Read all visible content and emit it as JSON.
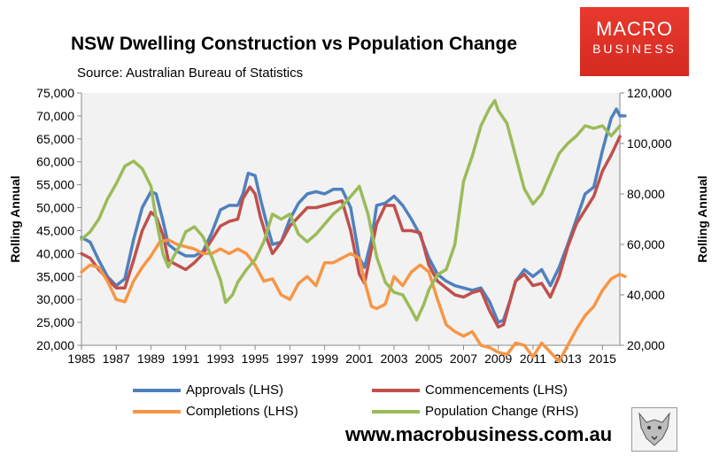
{
  "header": {
    "title": "NSW Dwelling Construction vs Population Change",
    "subtitle": "Source: Australian Bureau of Statistics"
  },
  "logo": {
    "line1": "MACRO",
    "line2": "BUSINESS"
  },
  "footer": {
    "website": "www.macrobusiness.com.au"
  },
  "colors": {
    "approvals": "#4f81bd",
    "commencements": "#c0504d",
    "completions": "#f79646",
    "population": "#9bbb59",
    "plot_bg": "#f2f2f2"
  },
  "chart_data": {
    "type": "line",
    "title": "NSW Dwelling Construction vs Population Change",
    "xlim": [
      1985,
      2016
    ],
    "x_ticks": [
      "1985",
      "1987",
      "1989",
      "1991",
      "1993",
      "1995",
      "1997",
      "1999",
      "2001",
      "2003",
      "2005",
      "2007",
      "2009",
      "2011",
      "2013",
      "2015"
    ],
    "y_left": {
      "label": "Rolling Annual",
      "lim": [
        20000,
        75000
      ],
      "ticks": [
        "20,000",
        "25,000",
        "30,000",
        "35,000",
        "40,000",
        "45,000",
        "50,000",
        "55,000",
        "60,000",
        "65,000",
        "70,000",
        "75,000"
      ]
    },
    "y_right": {
      "label": "Rolling Annual",
      "lim": [
        20000,
        120000
      ],
      "ticks": [
        "20,000",
        "40,000",
        "60,000",
        "80,000",
        "100,000",
        "120,000"
      ]
    },
    "series": [
      {
        "name": "Approvals (LHS)",
        "axis": "left",
        "color": "#4f81bd",
        "points": [
          [
            1985,
            43500
          ],
          [
            1985.5,
            42500
          ],
          [
            1986,
            38500
          ],
          [
            1986.5,
            35000
          ],
          [
            1987,
            33000
          ],
          [
            1987.5,
            34500
          ],
          [
            1988,
            43000
          ],
          [
            1988.5,
            50000
          ],
          [
            1989,
            53500
          ],
          [
            1989.3,
            53000
          ],
          [
            1989.7,
            47000
          ],
          [
            1990,
            42000
          ],
          [
            1990.5,
            40500
          ],
          [
            1991,
            39500
          ],
          [
            1991.5,
            39500
          ],
          [
            1992,
            40500
          ],
          [
            1992.5,
            44500
          ],
          [
            1993,
            49500
          ],
          [
            1993.5,
            50500
          ],
          [
            1994,
            50500
          ],
          [
            1994.3,
            53000
          ],
          [
            1994.6,
            57500
          ],
          [
            1995,
            57000
          ],
          [
            1995.3,
            52000
          ],
          [
            1995.7,
            46000
          ],
          [
            1996,
            42000
          ],
          [
            1996.5,
            42500
          ],
          [
            1997,
            47500
          ],
          [
            1997.5,
            51000
          ],
          [
            1998,
            53000
          ],
          [
            1998.5,
            53500
          ],
          [
            1999,
            53000
          ],
          [
            1999.5,
            54000
          ],
          [
            2000,
            54000
          ],
          [
            2000.5,
            50000
          ],
          [
            2001,
            39000
          ],
          [
            2001.3,
            37000
          ],
          [
            2001.7,
            43000
          ],
          [
            2002,
            50500
          ],
          [
            2002.5,
            51000
          ],
          [
            2003,
            52500
          ],
          [
            2003.5,
            50500
          ],
          [
            2004,
            47500
          ],
          [
            2004.5,
            44000
          ],
          [
            2005,
            39000
          ],
          [
            2005.5,
            35500
          ],
          [
            2006,
            34000
          ],
          [
            2006.5,
            33000
          ],
          [
            2007,
            32500
          ],
          [
            2007.5,
            32000
          ],
          [
            2008,
            32500
          ],
          [
            2008.5,
            29500
          ],
          [
            2009,
            25000
          ],
          [
            2009.3,
            25500
          ],
          [
            2009.7,
            30000
          ],
          [
            2010,
            34000
          ],
          [
            2010.5,
            36500
          ],
          [
            2011,
            35000
          ],
          [
            2011.5,
            36500
          ],
          [
            2012,
            33000
          ],
          [
            2012.5,
            37000
          ],
          [
            2013,
            42000
          ],
          [
            2013.5,
            47500
          ],
          [
            2014,
            53000
          ],
          [
            2014.5,
            54500
          ],
          [
            2015,
            62500
          ],
          [
            2015.5,
            69500
          ],
          [
            2015.8,
            71500
          ],
          [
            2016,
            70000
          ],
          [
            2016.3,
            70000
          ]
        ]
      },
      {
        "name": "Commencements (LHS)",
        "axis": "left",
        "color": "#c0504d",
        "points": [
          [
            1985,
            40000
          ],
          [
            1985.5,
            39000
          ],
          [
            1986,
            36500
          ],
          [
            1986.5,
            34500
          ],
          [
            1987,
            32500
          ],
          [
            1987.5,
            32500
          ],
          [
            1988,
            38500
          ],
          [
            1988.5,
            45000
          ],
          [
            1989,
            49000
          ],
          [
            1989.3,
            48000
          ],
          [
            1989.7,
            44000
          ],
          [
            1990,
            38500
          ],
          [
            1990.5,
            37500
          ],
          [
            1991,
            36500
          ],
          [
            1991.5,
            38000
          ],
          [
            1992,
            40000
          ],
          [
            1992.5,
            43000
          ],
          [
            1993,
            46000
          ],
          [
            1993.5,
            47000
          ],
          [
            1994,
            47500
          ],
          [
            1994.3,
            52000
          ],
          [
            1994.7,
            54500
          ],
          [
            1995,
            53000
          ],
          [
            1995.3,
            48000
          ],
          [
            1995.7,
            43000
          ],
          [
            1996,
            40000
          ],
          [
            1996.5,
            42500
          ],
          [
            1997,
            46000
          ],
          [
            1997.5,
            48000
          ],
          [
            1998,
            50000
          ],
          [
            1998.5,
            50000
          ],
          [
            1999,
            50500
          ],
          [
            1999.5,
            51000
          ],
          [
            2000,
            51500
          ],
          [
            2000.5,
            45000
          ],
          [
            2001,
            35500
          ],
          [
            2001.3,
            33500
          ],
          [
            2001.7,
            41000
          ],
          [
            2002,
            46500
          ],
          [
            2002.5,
            50500
          ],
          [
            2003,
            50500
          ],
          [
            2003.5,
            45000
          ],
          [
            2004,
            45000
          ],
          [
            2004.5,
            44500
          ],
          [
            2005,
            37500
          ],
          [
            2005.5,
            34000
          ],
          [
            2006,
            32500
          ],
          [
            2006.5,
            31000
          ],
          [
            2007,
            30500
          ],
          [
            2007.5,
            31500
          ],
          [
            2008,
            32000
          ],
          [
            2008.5,
            27500
          ],
          [
            2009,
            24000
          ],
          [
            2009.3,
            24500
          ],
          [
            2009.7,
            30000
          ],
          [
            2010,
            34000
          ],
          [
            2010.5,
            35500
          ],
          [
            2011,
            33000
          ],
          [
            2011.5,
            33500
          ],
          [
            2012,
            30500
          ],
          [
            2012.5,
            35000
          ],
          [
            2013,
            41500
          ],
          [
            2013.5,
            46500
          ],
          [
            2014,
            49500
          ],
          [
            2014.5,
            52500
          ],
          [
            2015,
            58000
          ],
          [
            2015.5,
            61500
          ],
          [
            2016,
            65500
          ]
        ]
      },
      {
        "name": "Completions (LHS)",
        "axis": "left",
        "color": "#f79646",
        "points": [
          [
            1985,
            36000
          ],
          [
            1985.5,
            37500
          ],
          [
            1986,
            37000
          ],
          [
            1986.5,
            34000
          ],
          [
            1987,
            30000
          ],
          [
            1987.5,
            29500
          ],
          [
            1988,
            34000
          ],
          [
            1988.5,
            37000
          ],
          [
            1989,
            39500
          ],
          [
            1989.5,
            42500
          ],
          [
            1990,
            43000
          ],
          [
            1990.5,
            42000
          ],
          [
            1991,
            41500
          ],
          [
            1991.5,
            41000
          ],
          [
            1992,
            40000
          ],
          [
            1992.5,
            40000
          ],
          [
            1993,
            41000
          ],
          [
            1993.5,
            40000
          ],
          [
            1994,
            41000
          ],
          [
            1994.5,
            40000
          ],
          [
            1995,
            37500
          ],
          [
            1995.5,
            34000
          ],
          [
            1996,
            34500
          ],
          [
            1996.5,
            31000
          ],
          [
            1997,
            30000
          ],
          [
            1997.5,
            33500
          ],
          [
            1998,
            35000
          ],
          [
            1998.5,
            33000
          ],
          [
            1999,
            38000
          ],
          [
            1999.5,
            38000
          ],
          [
            2000,
            39000
          ],
          [
            2000.5,
            40000
          ],
          [
            2001,
            39000
          ],
          [
            2001.3,
            34000
          ],
          [
            2001.7,
            28500
          ],
          [
            2002,
            28000
          ],
          [
            2002.5,
            29000
          ],
          [
            2003,
            35000
          ],
          [
            2003.5,
            33000
          ],
          [
            2004,
            36000
          ],
          [
            2004.5,
            37500
          ],
          [
            2005,
            36000
          ],
          [
            2005.5,
            30000
          ],
          [
            2006,
            24500
          ],
          [
            2006.5,
            23000
          ],
          [
            2007,
            22000
          ],
          [
            2007.5,
            23000
          ],
          [
            2008,
            20000
          ],
          [
            2008.5,
            19500
          ],
          [
            2009,
            18500
          ],
          [
            2009.5,
            18000
          ],
          [
            2010,
            20500
          ],
          [
            2010.5,
            20000
          ],
          [
            2011,
            17500
          ],
          [
            2011.5,
            20500
          ],
          [
            2012,
            18500
          ],
          [
            2012.5,
            16500
          ],
          [
            2013,
            20000
          ],
          [
            2013.5,
            23500
          ],
          [
            2014,
            26500
          ],
          [
            2014.5,
            28500
          ],
          [
            2015,
            32000
          ],
          [
            2015.5,
            34500
          ],
          [
            2016,
            35500
          ],
          [
            2016.3,
            35000
          ]
        ]
      },
      {
        "name": "Population Change (RHS)",
        "axis": "right",
        "color": "#9bbb59",
        "points": [
          [
            1985,
            62000
          ],
          [
            1985.5,
            65000
          ],
          [
            1986,
            70000
          ],
          [
            1986.5,
            78000
          ],
          [
            1987,
            84000
          ],
          [
            1987.5,
            91000
          ],
          [
            1988,
            93000
          ],
          [
            1988.5,
            90000
          ],
          [
            1989,
            83000
          ],
          [
            1989.3,
            70000
          ],
          [
            1989.7,
            56000
          ],
          [
            1990,
            51000
          ],
          [
            1990.3,
            55000
          ],
          [
            1990.7,
            60000
          ],
          [
            1991,
            65000
          ],
          [
            1991.5,
            67000
          ],
          [
            1992,
            63000
          ],
          [
            1992.5,
            55000
          ],
          [
            1993,
            46000
          ],
          [
            1993.3,
            37000
          ],
          [
            1993.7,
            40000
          ],
          [
            1994,
            45000
          ],
          [
            1994.5,
            50000
          ],
          [
            1995,
            54000
          ],
          [
            1995.5,
            61000
          ],
          [
            1996,
            72000
          ],
          [
            1996.5,
            70000
          ],
          [
            1997,
            72000
          ],
          [
            1997.5,
            64000
          ],
          [
            1998,
            61000
          ],
          [
            1998.5,
            64000
          ],
          [
            1999,
            68000
          ],
          [
            1999.5,
            72000
          ],
          [
            2000,
            75000
          ],
          [
            2000.5,
            79000
          ],
          [
            2001,
            83000
          ],
          [
            2001.5,
            72000
          ],
          [
            2002,
            55000
          ],
          [
            2002.5,
            45000
          ],
          [
            2003,
            41000
          ],
          [
            2003.5,
            40000
          ],
          [
            2004,
            34000
          ],
          [
            2004.3,
            30000
          ],
          [
            2004.7,
            36000
          ],
          [
            2005,
            42000
          ],
          [
            2005.5,
            48000
          ],
          [
            2006,
            50000
          ],
          [
            2006.5,
            60000
          ],
          [
            2007,
            85000
          ],
          [
            2007.5,
            95000
          ],
          [
            2008,
            107000
          ],
          [
            2008.5,
            114000
          ],
          [
            2008.8,
            117000
          ],
          [
            2009,
            113000
          ],
          [
            2009.5,
            108000
          ],
          [
            2010,
            95000
          ],
          [
            2010.5,
            82000
          ],
          [
            2011,
            76000
          ],
          [
            2011.5,
            80000
          ],
          [
            2012,
            88000
          ],
          [
            2012.5,
            96000
          ],
          [
            2013,
            100000
          ],
          [
            2013.5,
            103000
          ],
          [
            2014,
            107000
          ],
          [
            2014.5,
            106000
          ],
          [
            2015,
            107000
          ],
          [
            2015.5,
            103000
          ],
          [
            2016,
            107000
          ]
        ]
      }
    ]
  }
}
